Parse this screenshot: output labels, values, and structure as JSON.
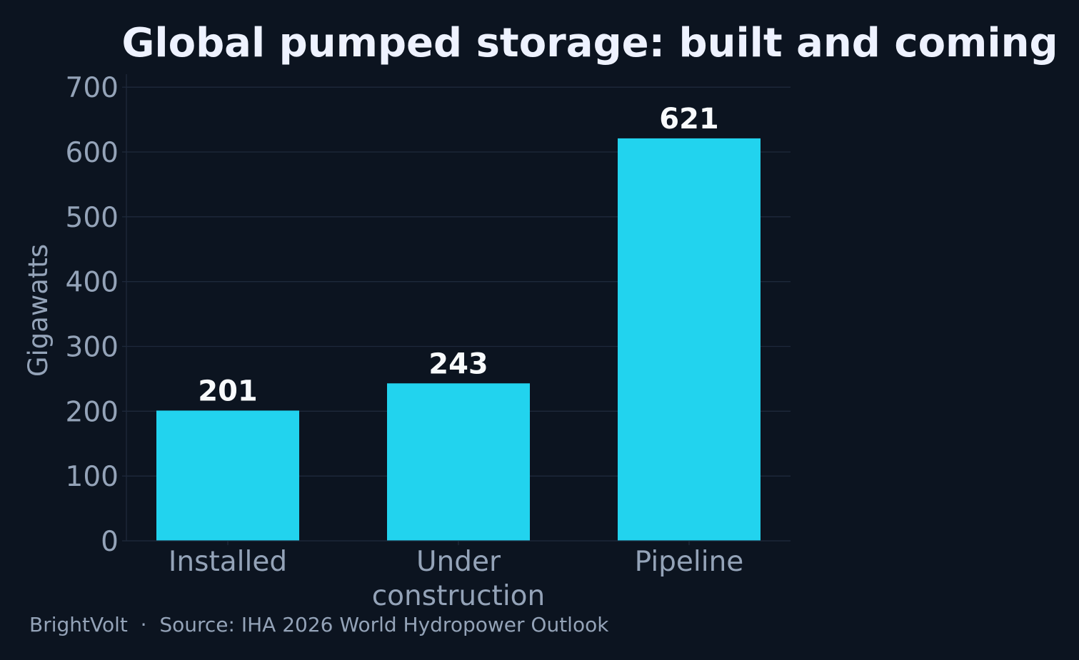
{
  "chart_data": {
    "type": "bar",
    "title": "Global pumped storage: built and coming",
    "xlabel": "",
    "ylabel": "Gigawatts",
    "categories": [
      [
        "Installed"
      ],
      [
        "Under",
        "construction"
      ],
      [
        "Pipeline"
      ]
    ],
    "values": [
      201,
      243,
      621
    ],
    "data_labels": [
      "201",
      "243",
      "621"
    ],
    "ylim": [
      0,
      720
    ],
    "yticks": [
      0,
      100,
      200,
      300,
      400,
      500,
      600,
      700
    ],
    "grid": "horizontal",
    "legend": "none"
  },
  "footer": {
    "text": "BrightVolt  ·  Source: IHA 2026 World Hydropower Outlook"
  },
  "colors": {
    "background": "#0c1420",
    "bar": "#22d3ee",
    "title": "#eef2ff",
    "value_label": "#f8fafc",
    "axis_text": "#94a3b8",
    "grid": "#1e293b",
    "footer": "#94a3b8"
  }
}
